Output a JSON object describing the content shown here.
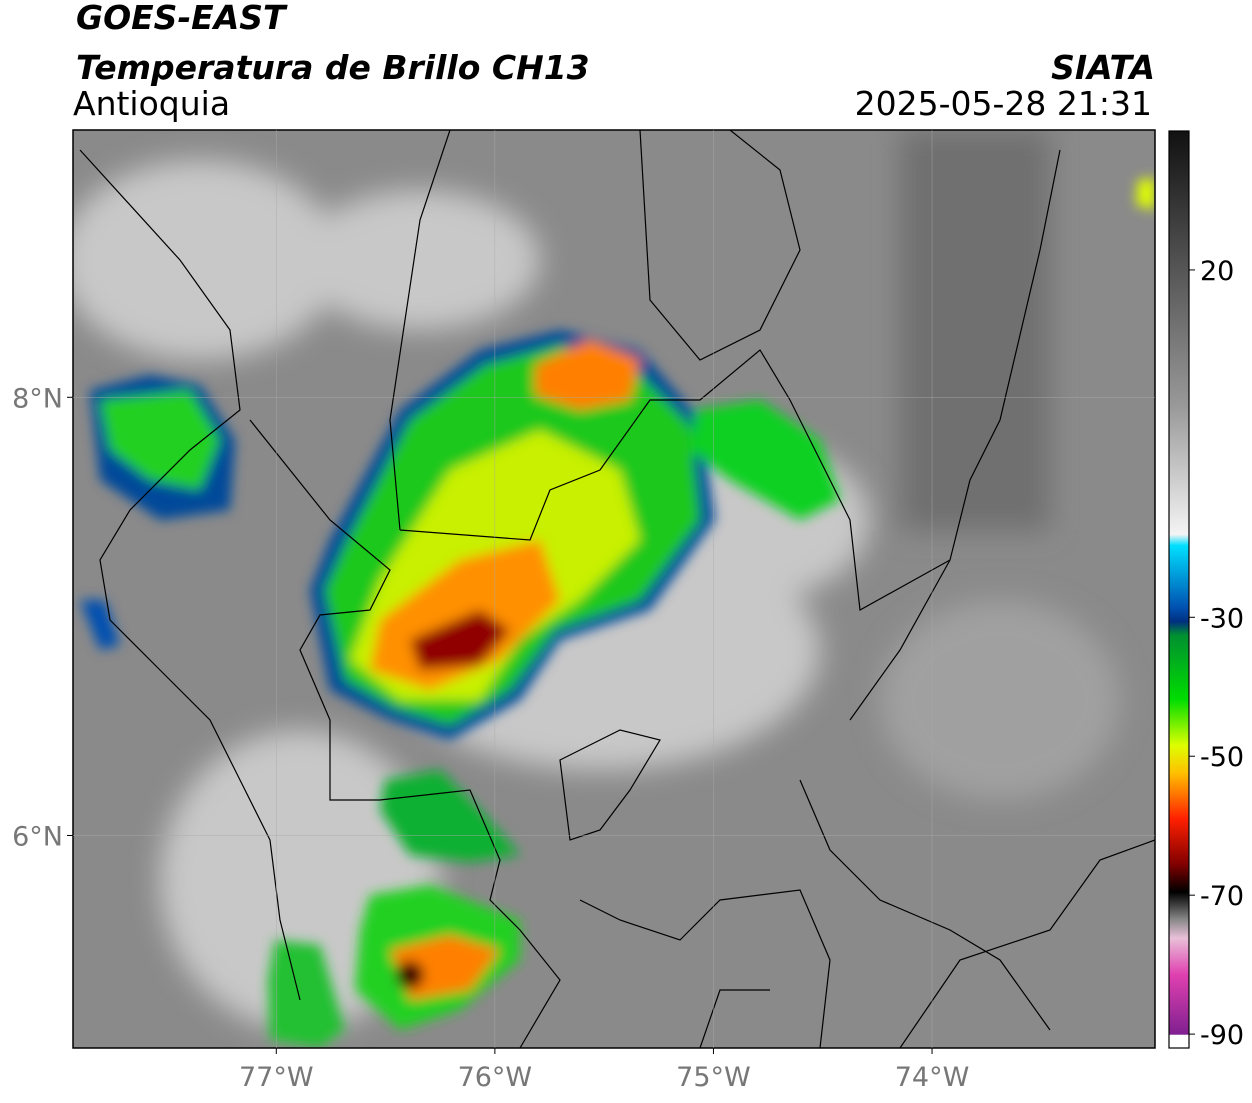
{
  "header": {
    "title": "GOES-EAST",
    "subtitle": "Temperatura de Brillo CH13",
    "region": "Antioquia",
    "source": "SIATA",
    "datetime": "2025-05-28 21:31"
  },
  "map": {
    "xlim": [
      -77.93,
      -72.98
    ],
    "ylim": [
      5.03,
      9.22
    ],
    "xticks": [
      {
        "value": -77,
        "label": "77°W"
      },
      {
        "value": -76,
        "label": "76°W"
      },
      {
        "value": -75,
        "label": "75°W"
      },
      {
        "value": -74,
        "label": "74°W"
      }
    ],
    "yticks": [
      {
        "value": 6,
        "label": "6°N"
      },
      {
        "value": 8,
        "label": "8°N"
      }
    ],
    "grid": true
  },
  "colorbar": {
    "lim": [
      -92,
      40
    ],
    "ticks": [
      20,
      -30,
      -50,
      -70,
      -90
    ]
  }
}
